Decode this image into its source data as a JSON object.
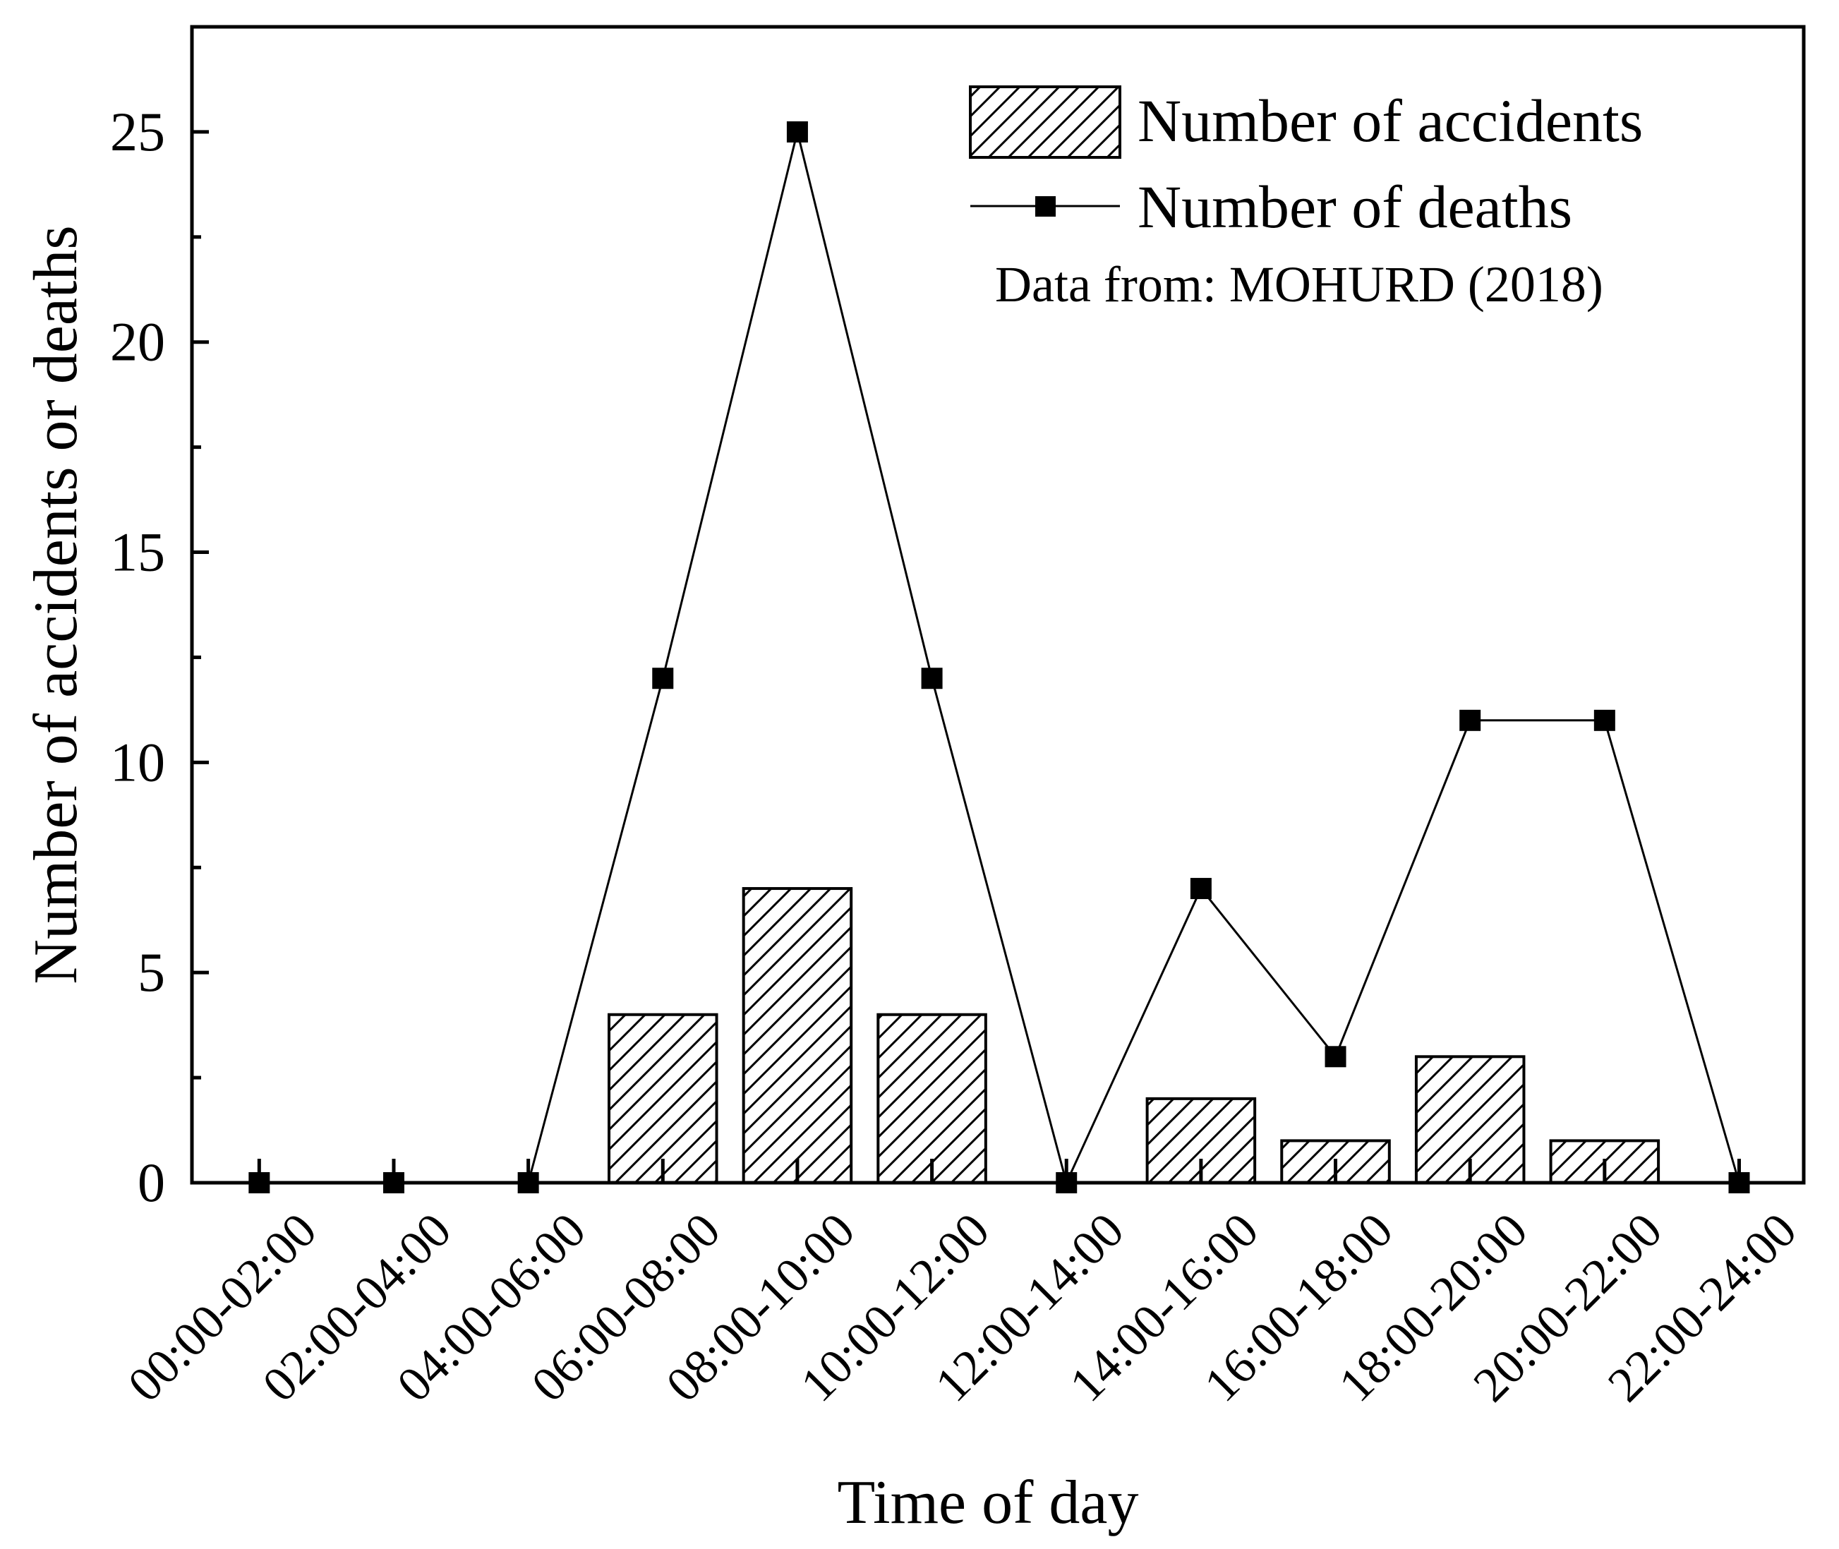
{
  "chart_data": {
    "type": "bar",
    "title": "",
    "xlabel": "Time of day",
    "ylabel": "Number of accidents or deaths",
    "ylim": [
      0,
      27.5
    ],
    "yticks": [
      0,
      5,
      10,
      15,
      20,
      25
    ],
    "yticks_minor": [
      2.5,
      7.5,
      12.5,
      17.5,
      22.5
    ],
    "categories": [
      "00:00-02:00",
      "02:00-04:00",
      "04:00-06:00",
      "06:00-08:00",
      "08:00-10:00",
      "10:00-12:00",
      "12:00-14:00",
      "14:00-16:00",
      "16:00-18:00",
      "18:00-20:00",
      "20:00-22:00",
      "22:00-24:00"
    ],
    "series": [
      {
        "name": "Number of accidents",
        "kind": "bar",
        "pattern": "diagonal-hatch",
        "values": [
          0,
          0,
          0,
          4,
          7,
          4,
          0,
          2,
          1,
          3,
          1,
          0
        ]
      },
      {
        "name": "Number of deaths",
        "kind": "line",
        "marker": "square",
        "values": [
          0,
          0,
          0,
          12,
          25,
          12,
          0,
          7,
          3,
          11,
          11,
          0
        ]
      }
    ],
    "legend_position": "top-right",
    "annotation": "Data from: MOHURD (2018)",
    "grid": false,
    "colors": {
      "ink": "#000000",
      "bar_fill": "#ffffff"
    }
  }
}
